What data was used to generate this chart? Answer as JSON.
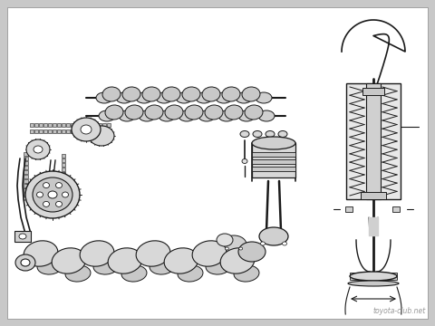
{
  "bg_color": "#c8c8c8",
  "white": "#ffffff",
  "dark": "#1a1a1a",
  "mid": "#888888",
  "light_gray": "#e0e0e0",
  "med_gray": "#b0b0b0",
  "watermark": "toyota-club.net",
  "watermark_color": "#999999",
  "fig_width": 4.8,
  "fig_height": 3.6,
  "dpi": 100
}
